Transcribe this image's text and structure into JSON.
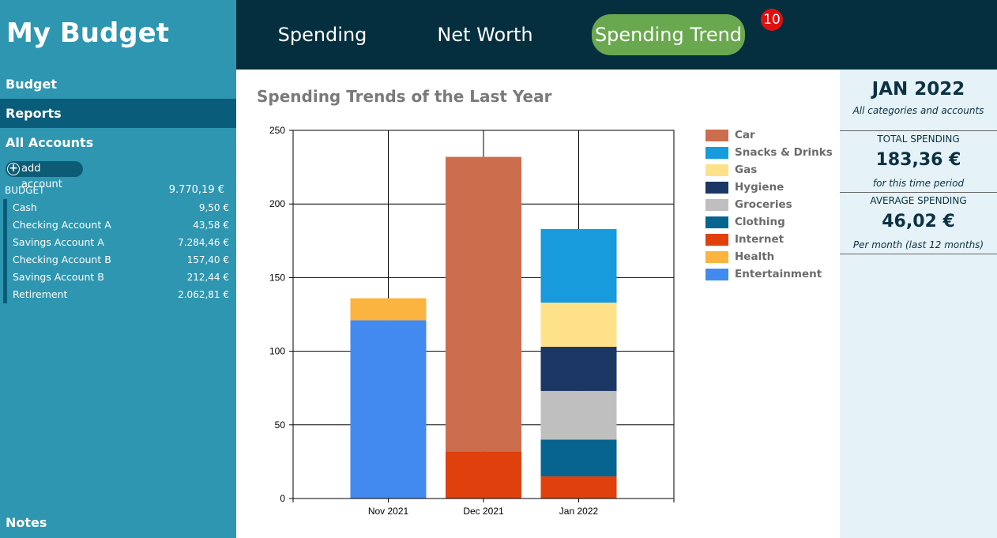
{
  "app": {
    "title": "My Budget"
  },
  "sidebar": {
    "budget_label": "Budget",
    "reports_label": "Reports",
    "all_accounts_label": "All Accounts",
    "add_account_label": "add account",
    "budget_group": {
      "label": "BUDGET",
      "amount": "9.770,19 €"
    },
    "accounts": [
      {
        "name": "Cash",
        "amount": "9,50 €"
      },
      {
        "name": "Checking Account A",
        "amount": "43,58 €"
      },
      {
        "name": "Savings Account A",
        "amount": "7.284,46 €"
      },
      {
        "name": "Checking Account B",
        "amount": "157,40 €"
      },
      {
        "name": "Savings Account B",
        "amount": "212,44 €"
      },
      {
        "name": "Retirement",
        "amount": "2.062,81 €"
      }
    ],
    "notes_label": "Notes"
  },
  "nav": {
    "tabs": [
      "Spending",
      "Net Worth",
      "Spending Trend"
    ],
    "active_tab": "Spending Trend",
    "badge": "10"
  },
  "main": {
    "title": "Spending Trends of the Last Year"
  },
  "chart_data": {
    "type": "bar",
    "stacked": true,
    "categories": [
      "Nov 2021",
      "Dec 2021",
      "Jan 2022"
    ],
    "ylim": [
      0,
      250
    ],
    "yticks": [
      0,
      50,
      100,
      150,
      200,
      250
    ],
    "grid": true,
    "legend_position": "right",
    "series": [
      {
        "name": "Car",
        "color": "#cc6d4e",
        "values": [
          0,
          200,
          0
        ]
      },
      {
        "name": "Snacks & Drinks",
        "color": "#179bdc",
        "values": [
          0,
          0,
          50
        ]
      },
      {
        "name": "Gas",
        "color": "#ffe189",
        "values": [
          0,
          0,
          30
        ]
      },
      {
        "name": "Hygiene",
        "color": "#1b3764",
        "values": [
          0,
          0,
          30
        ]
      },
      {
        "name": "Groceries",
        "color": "#bfbfbf",
        "values": [
          0,
          0,
          33
        ]
      },
      {
        "name": "Clothing",
        "color": "#07648f",
        "values": [
          0,
          0,
          25
        ]
      },
      {
        "name": "Internet",
        "color": "#e0410c",
        "values": [
          0,
          32,
          15
        ]
      },
      {
        "name": "Health",
        "color": "#fbb440",
        "values": [
          15,
          0,
          0
        ]
      },
      {
        "name": "Entertainment",
        "color": "#438af0",
        "values": [
          121,
          0,
          0
        ]
      }
    ]
  },
  "summary": {
    "month": "JAN 2022",
    "scope": "All categories and accounts",
    "total_label": "TOTAL SPENDING",
    "total_value": "183,36 €",
    "total_note": "for this time period",
    "avg_label": "AVERAGE SPENDING",
    "avg_value": "46,02 €",
    "avg_note": "Per month (last 12 months)"
  },
  "colors": {
    "sidebar": "#2e96b1",
    "sidebar_active": "#0a5d7a",
    "nav": "#052f3e",
    "active_tab": "#6aa84f",
    "badge": "#e01010",
    "panel": "#e5f3f8"
  }
}
